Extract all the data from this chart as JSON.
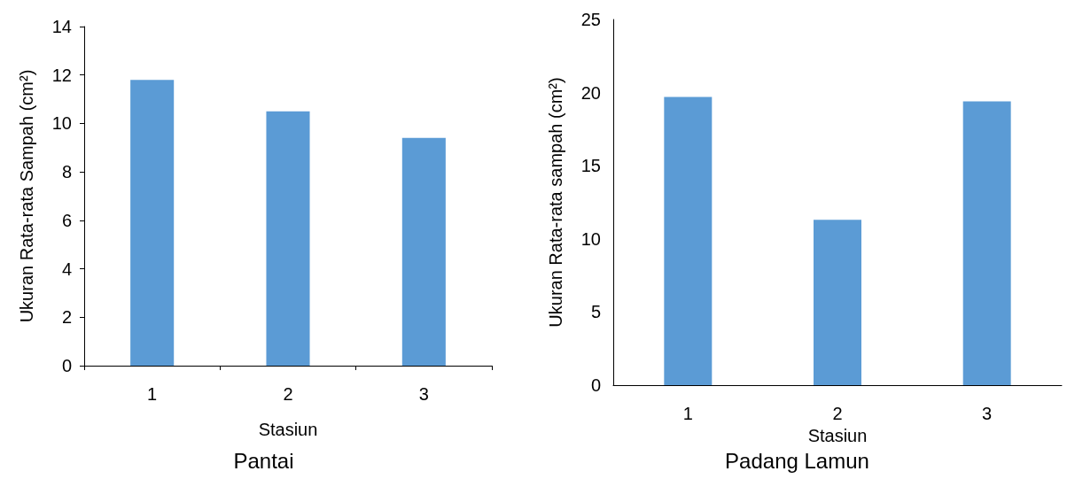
{
  "chart_data": [
    {
      "type": "bar",
      "title": "Pantai",
      "xlabel": "Stasiun",
      "ylabel": "Ukuran Rata-rata Sampah (cm²)",
      "categories": [
        "1",
        "2",
        "3"
      ],
      "values": [
        11.8,
        10.5,
        9.4
      ],
      "color": "#5b9bd5",
      "ylim": [
        0,
        14
      ],
      "yticks": [
        0,
        2,
        4,
        6,
        8,
        10,
        12,
        14
      ],
      "grid": false
    },
    {
      "type": "bar",
      "title": "Padang Lamun",
      "xlabel": "Stasiun",
      "ylabel": "Ukuran Rata-rata sampah (cm²)",
      "categories": [
        "1",
        "2",
        "3"
      ],
      "values": [
        19.7,
        11.3,
        19.4
      ],
      "color": "#5b9bd5",
      "ylim": [
        0,
        25
      ],
      "yticks": [
        0,
        5,
        10,
        15,
        20,
        25
      ],
      "grid": false
    }
  ]
}
